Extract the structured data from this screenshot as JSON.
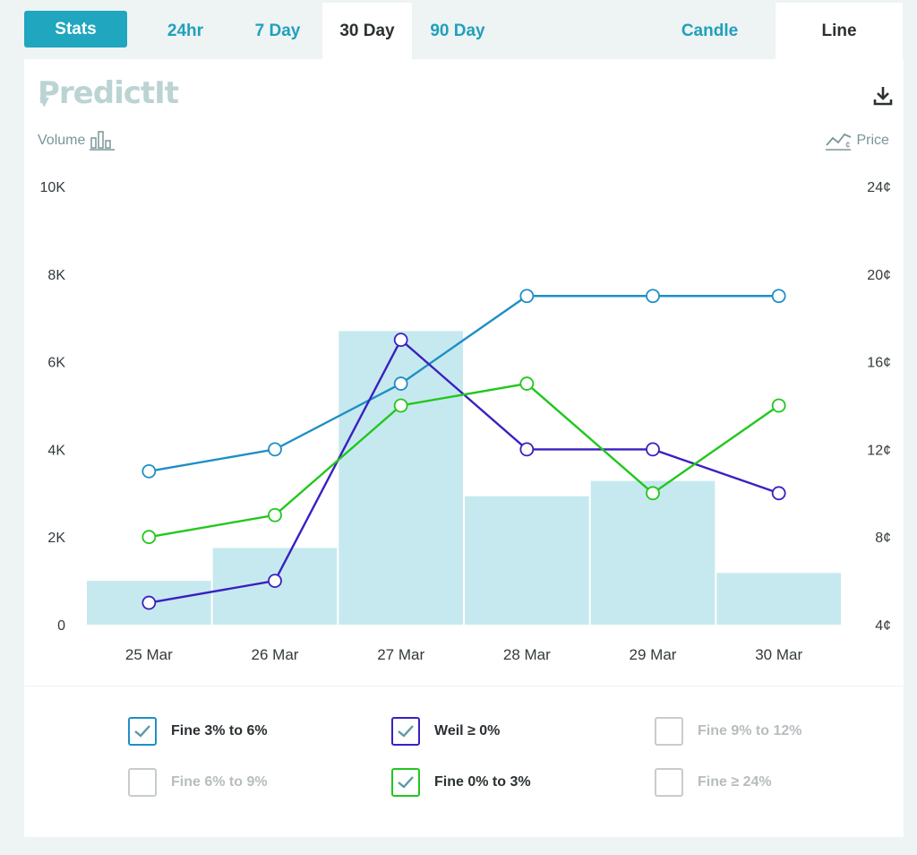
{
  "tabs": {
    "stats": "Stats",
    "ranges": [
      "24hr",
      "7 Day",
      "30 Day",
      "90 Day"
    ],
    "active_range": "30 Day",
    "views": [
      "Candle",
      "Line"
    ],
    "active_view": "Line"
  },
  "logo": "PredictIt",
  "left_axis_title": "Volume",
  "right_axis_title": "Price",
  "colors": {
    "accent": "#20a7bf",
    "volume_bar": "#c6e9ef",
    "fine_3_6": "#1e8fc6",
    "weil_0": "#3a20c0",
    "fine_0_3": "#22c71e"
  },
  "chart_data": {
    "type": "line",
    "categories": [
      "25 Mar",
      "26 Mar",
      "27 Mar",
      "28 Mar",
      "29 Mar",
      "30 Mar"
    ],
    "left_axis": {
      "label": "Volume",
      "ylim": [
        0,
        10000
      ],
      "ticks": [
        "0",
        "2K",
        "4K",
        "6K",
        "8K",
        "10K"
      ]
    },
    "right_axis": {
      "label": "Price",
      "ylim": [
        4,
        24
      ],
      "ticks": [
        "4¢",
        "8¢",
        "12¢",
        "16¢",
        "20¢",
        "24¢"
      ]
    },
    "volume": [
      1000,
      1750,
      6700,
      2930,
      3280,
      1180
    ],
    "series": [
      {
        "name": "Fine 3% to 6%",
        "color": "#1e8fc6",
        "values": [
          11,
          12,
          15,
          19,
          19,
          19
        ]
      },
      {
        "name": "Weil ≥ 0%",
        "color": "#3a20c0",
        "values": [
          5,
          6,
          17,
          12,
          12,
          10
        ]
      },
      {
        "name": "Fine 0% to 3%",
        "color": "#22c71e",
        "values": [
          8,
          9,
          14,
          15,
          10,
          14
        ]
      }
    ],
    "grid": false
  },
  "legend": [
    {
      "label": "Fine 3% to 6%",
      "checked": true,
      "color": "#1e8fc6"
    },
    {
      "label": "Weil ≥ 0%",
      "checked": true,
      "color": "#3a20c0"
    },
    {
      "label": "Fine 9% to 12%",
      "checked": false,
      "color": "#c8cccc"
    },
    {
      "label": "Fine 6% to 9%",
      "checked": false,
      "color": "#c8cccc"
    },
    {
      "label": "Fine 0% to 3%",
      "checked": true,
      "color": "#22c71e"
    },
    {
      "label": "Fine ≥ 24%",
      "checked": false,
      "color": "#c8cccc"
    }
  ]
}
